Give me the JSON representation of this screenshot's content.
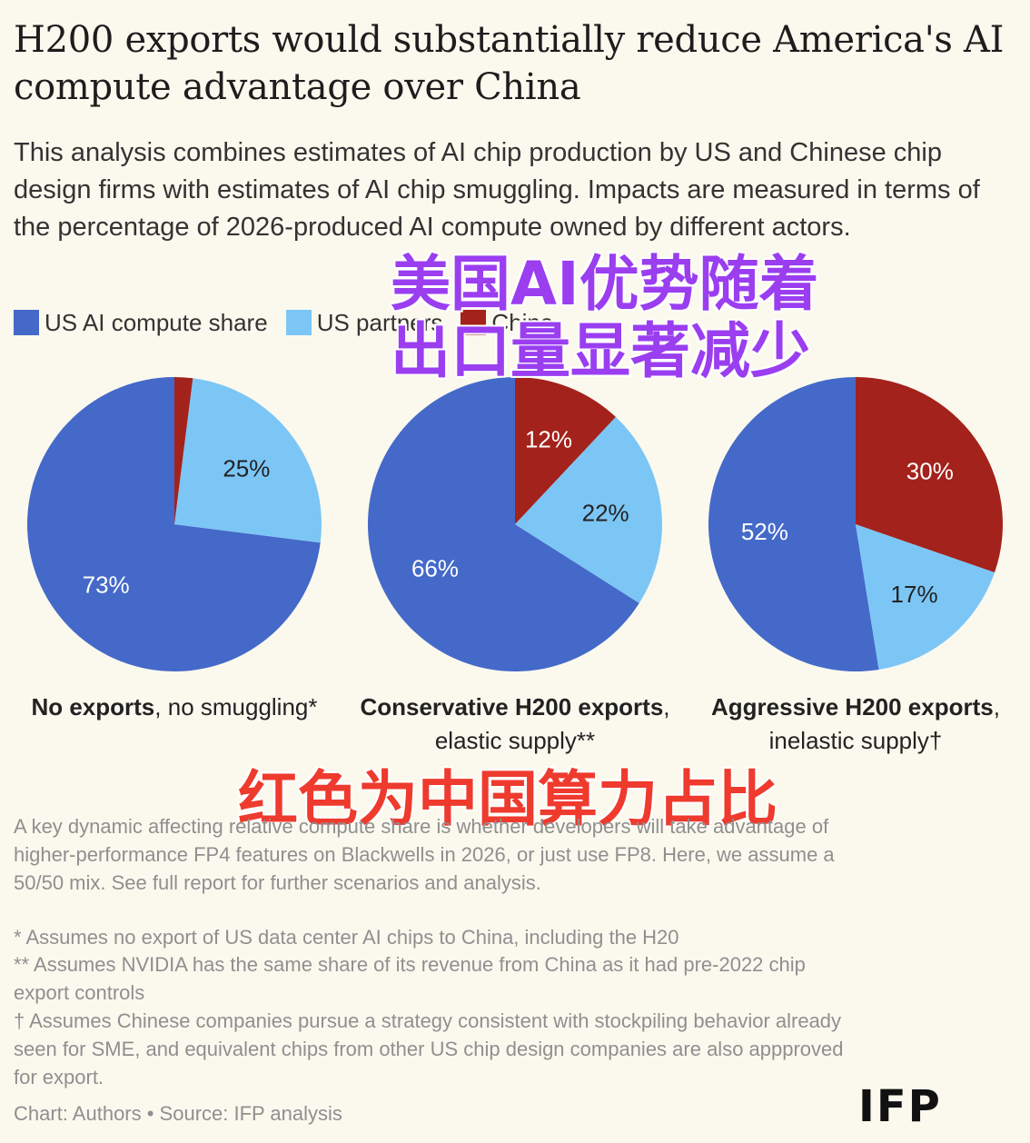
{
  "title": "H200 exports would substantially reduce America's AI compute advantage over China",
  "subtitle": "This analysis combines estimates of AI chip production by US and Chinese chip design firms with estimates of AI chip smuggling. Impacts are measured in terms of the percentage of 2026-produced AI compute owned by different actors.",
  "legend": [
    {
      "label": "US AI compute share",
      "color": "#4469c9"
    },
    {
      "label": "US partners",
      "color": "#7cc6f6"
    },
    {
      "label": "China",
      "color": "#a3221b"
    }
  ],
  "chart_data": {
    "type": "pie",
    "series_names": [
      "US AI compute share",
      "US partners",
      "China"
    ],
    "colors": [
      "#4469c9",
      "#7cc6f6",
      "#a3221b"
    ],
    "pies": [
      {
        "label_bold": "No exports",
        "label_rest": ", no smuggling*",
        "values": [
          73,
          25,
          2
        ],
        "data_labels": [
          "73%",
          "25%",
          ""
        ]
      },
      {
        "label_bold": "Conservative H200 exports",
        "label_rest": ", elastic supply**",
        "values": [
          66,
          22,
          12
        ],
        "data_labels": [
          "66%",
          "22%",
          "12%"
        ]
      },
      {
        "label_bold": "Aggressive H200 exports",
        "label_rest": ", inelastic supply†",
        "values": [
          52,
          17,
          30
        ],
        "data_labels": [
          "52%",
          "17%",
          "30%"
        ]
      }
    ]
  },
  "overlay": {
    "line1": "美国AI优势随着",
    "line2": "出口量显著减少",
    "line3": "红色为中国算力占比"
  },
  "notes": {
    "dynamic": "A key dynamic affecting relative compute share is whether developers will take advantage of higher-performance FP4 features on Blackwells in 2026, or just use FP8. Here, we assume a 50/50 mix. See full report for further scenarios and analysis.",
    "footnote1": "* Assumes no export of US data center AI chips to China, including the H20",
    "footnote2": "** Assumes NVIDIA has the same share of its revenue from China as it had pre-2022 chip export controls",
    "footnote3": "† Assumes Chinese companies pursue a strategy consistent with stockpiling behavior already seen for SME, and equivalent chips from other US chip design companies are also appproved for export.",
    "credit": "Chart: Authors • Source: IFP analysis"
  },
  "logo": "IFP"
}
